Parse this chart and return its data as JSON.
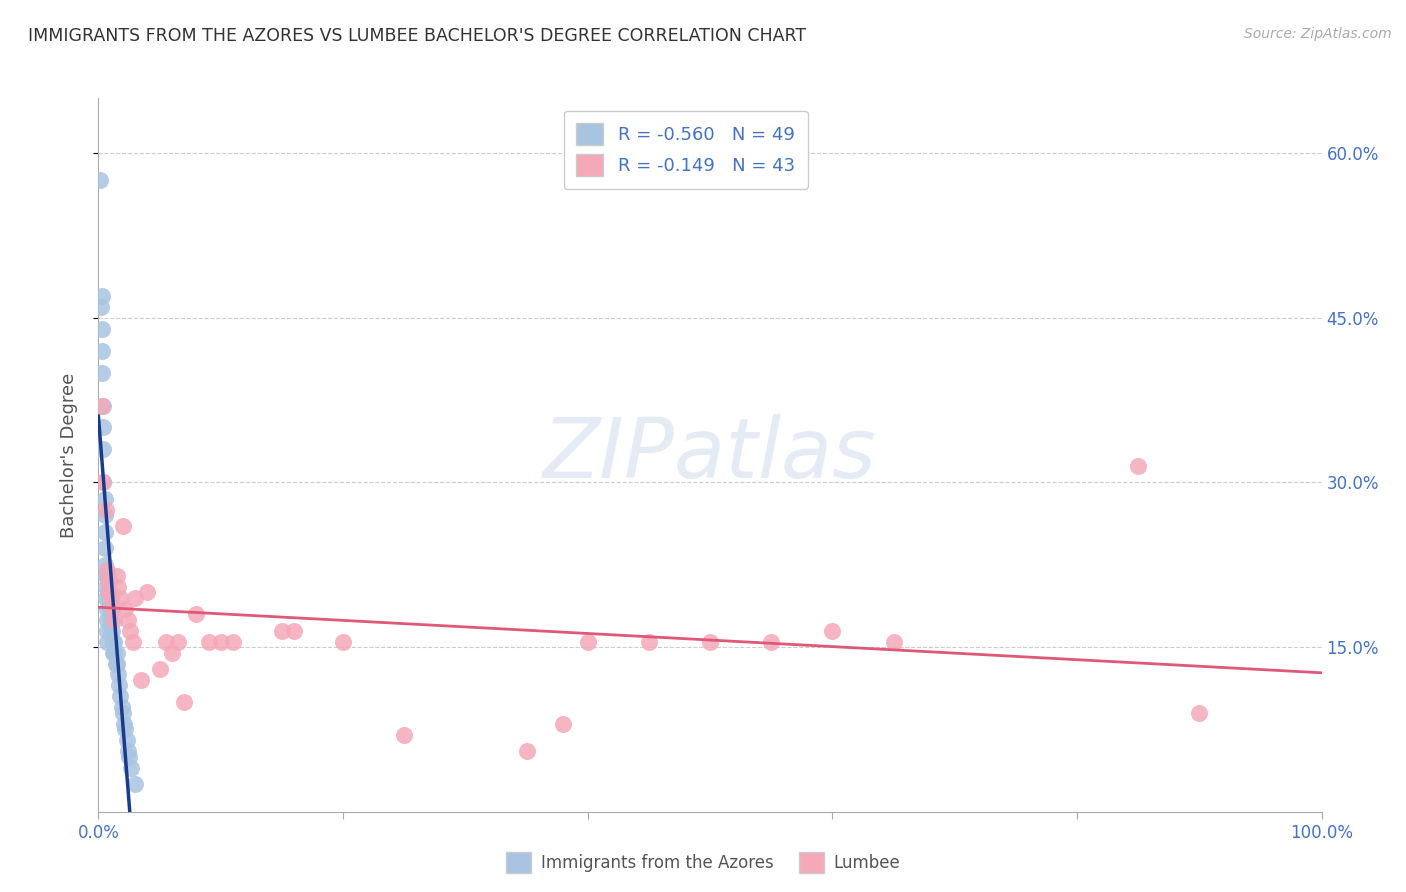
{
  "title": "IMMIGRANTS FROM THE AZORES VS LUMBEE BACHELOR'S DEGREE CORRELATION CHART",
  "source": "Source: ZipAtlas.com",
  "ylabel": "Bachelor's Degree",
  "xlim": [
    0.0,
    1.0
  ],
  "ylim": [
    0.0,
    0.65
  ],
  "blue_R": -0.56,
  "blue_N": 49,
  "pink_R": -0.149,
  "pink_N": 43,
  "blue_color": "#a8c4e0",
  "pink_color": "#f4a8b8",
  "blue_line_color": "#1a3a8c",
  "pink_line_color": "#e05878",
  "grid_color": "#cccccc",
  "footer_blue": "Immigrants from the Azores",
  "footer_pink": "Lumbee",
  "blue_x": [
    0.001,
    0.002,
    0.003,
    0.003,
    0.003,
    0.003,
    0.004,
    0.004,
    0.004,
    0.004,
    0.005,
    0.005,
    0.005,
    0.005,
    0.005,
    0.006,
    0.006,
    0.006,
    0.007,
    0.007,
    0.007,
    0.007,
    0.008,
    0.008,
    0.009,
    0.009,
    0.01,
    0.01,
    0.01,
    0.011,
    0.012,
    0.012,
    0.013,
    0.013,
    0.014,
    0.015,
    0.015,
    0.016,
    0.017,
    0.018,
    0.019,
    0.02,
    0.021,
    0.022,
    0.023,
    0.024,
    0.025,
    0.027,
    0.03
  ],
  "blue_y": [
    0.575,
    0.46,
    0.47,
    0.44,
    0.42,
    0.4,
    0.37,
    0.35,
    0.33,
    0.3,
    0.285,
    0.27,
    0.255,
    0.24,
    0.225,
    0.215,
    0.205,
    0.195,
    0.185,
    0.175,
    0.165,
    0.155,
    0.215,
    0.2,
    0.21,
    0.195,
    0.195,
    0.185,
    0.175,
    0.165,
    0.155,
    0.145,
    0.155,
    0.145,
    0.135,
    0.145,
    0.135,
    0.125,
    0.115,
    0.105,
    0.095,
    0.09,
    0.08,
    0.075,
    0.065,
    0.055,
    0.05,
    0.04,
    0.025
  ],
  "pink_x": [
    0.003,
    0.004,
    0.006,
    0.007,
    0.008,
    0.009,
    0.01,
    0.012,
    0.013,
    0.015,
    0.016,
    0.018,
    0.02,
    0.022,
    0.024,
    0.026,
    0.028,
    0.03,
    0.035,
    0.04,
    0.05,
    0.055,
    0.06,
    0.065,
    0.07,
    0.08,
    0.09,
    0.1,
    0.11,
    0.15,
    0.16,
    0.2,
    0.25,
    0.35,
    0.38,
    0.4,
    0.45,
    0.5,
    0.55,
    0.6,
    0.65,
    0.85,
    0.9
  ],
  "pink_y": [
    0.37,
    0.3,
    0.275,
    0.22,
    0.21,
    0.2,
    0.195,
    0.185,
    0.175,
    0.215,
    0.205,
    0.195,
    0.26,
    0.185,
    0.175,
    0.165,
    0.155,
    0.195,
    0.12,
    0.2,
    0.13,
    0.155,
    0.145,
    0.155,
    0.1,
    0.18,
    0.155,
    0.155,
    0.155,
    0.165,
    0.165,
    0.155,
    0.07,
    0.055,
    0.08,
    0.155,
    0.155,
    0.155,
    0.155,
    0.165,
    0.155,
    0.315,
    0.09
  ]
}
